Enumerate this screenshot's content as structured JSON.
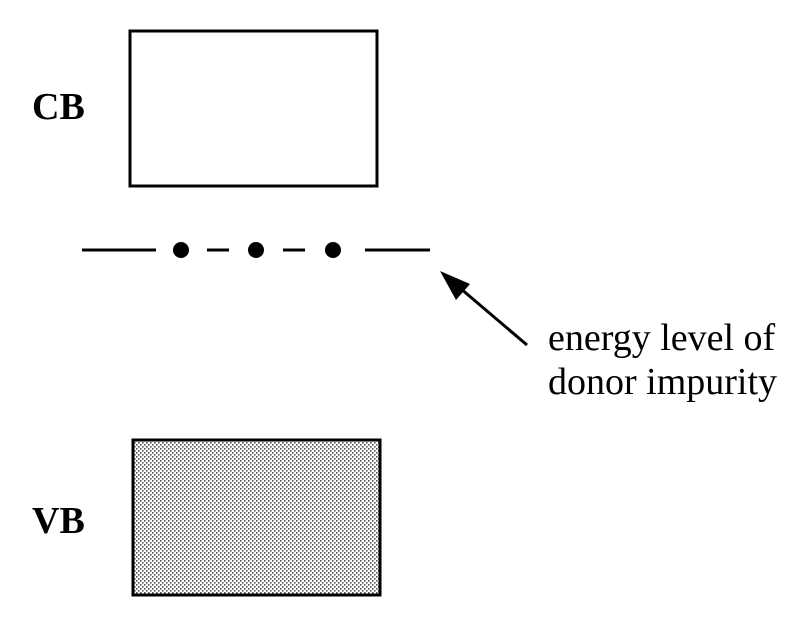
{
  "bands": {
    "conduction": {
      "label": "CB",
      "fill": "#ffffff"
    },
    "valence": {
      "label": "VB",
      "fill": "#b8b8b8"
    }
  },
  "donor_level": {
    "annotation_line1": "energy level of",
    "annotation_line2": "donor impurity",
    "dot_count": 3
  },
  "colors": {
    "stroke": "#000000",
    "background": "#ffffff"
  }
}
